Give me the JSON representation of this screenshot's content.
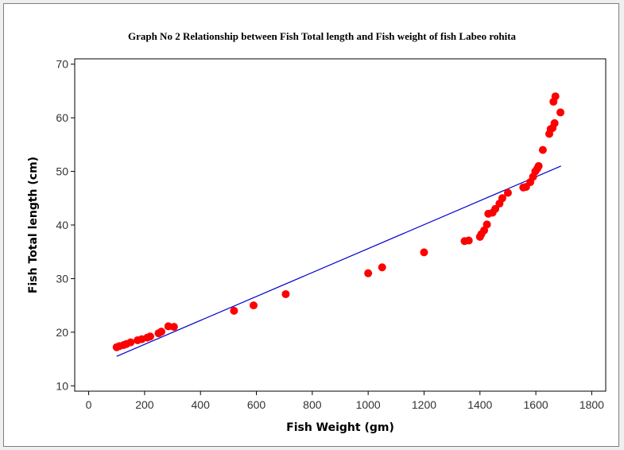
{
  "chart_data": {
    "type": "scatter",
    "title": "Graph No 2 Relationship between  Fish Total length and Fish weight of fish Labeo rohita",
    "xlabel": "Fish Weight (gm)",
    "ylabel": "Fish Total length (cm)",
    "xlim": [
      -50,
      1850
    ],
    "ylim": [
      9,
      71
    ],
    "xticks": [
      "0",
      "200",
      "400",
      "600",
      "800",
      "1000",
      "1200",
      "1400",
      "1600",
      "1800"
    ],
    "yticks": [
      "10",
      "20",
      "30",
      "40",
      "50",
      "60",
      "70"
    ],
    "x": [
      100,
      110,
      125,
      135,
      150,
      175,
      190,
      210,
      220,
      250,
      260,
      285,
      305,
      520,
      590,
      705,
      1000,
      1050,
      1200,
      1345,
      1360,
      1400,
      1405,
      1415,
      1425,
      1430,
      1445,
      1455,
      1470,
      1480,
      1500,
      1555,
      1565,
      1580,
      1590,
      1598,
      1605,
      1610,
      1625,
      1648,
      1653,
      1660,
      1663,
      1667,
      1670,
      1688
    ],
    "y": [
      17.2,
      17.4,
      17.6,
      17.8,
      18.1,
      18.5,
      18.7,
      19.0,
      19.2,
      19.8,
      20.1,
      21.1,
      21.0,
      24.0,
      25.0,
      27.1,
      31.0,
      32.1,
      34.9,
      37.0,
      37.1,
      37.8,
      38.3,
      39.0,
      40.1,
      42.1,
      42.3,
      43.0,
      44.0,
      45.0,
      46.0,
      47.0,
      47.1,
      48.0,
      49.0,
      50.0,
      50.5,
      51.0,
      54.0,
      57.0,
      57.9,
      58.1,
      63.0,
      59.0,
      64.0,
      61.0
    ],
    "fit_line": {
      "x": [
        100,
        1690
      ],
      "y": [
        15.5,
        51.0
      ]
    },
    "point_color": "#ff0000",
    "line_color": "#0000cc",
    "grid": false
  }
}
